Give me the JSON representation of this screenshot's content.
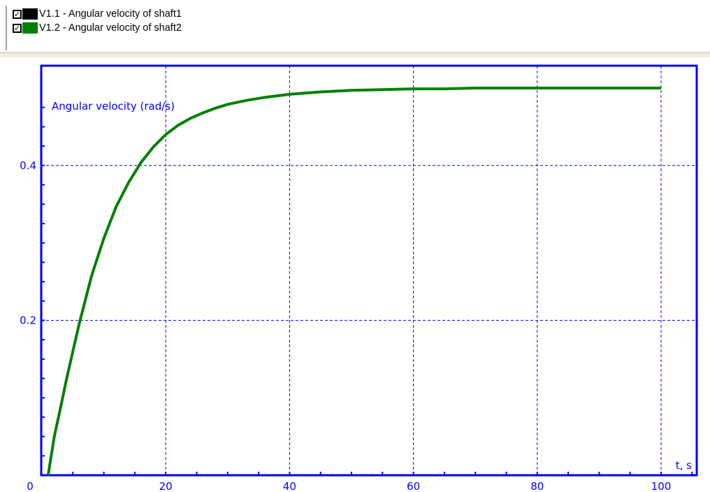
{
  "legend": {
    "items": [
      {
        "label": "V1.1 - Angular velocity of shaft1",
        "color": "#000000",
        "checked": true,
        "check_glyph": "✓",
        "icon": "checkbox-checked-icon"
      },
      {
        "label": "V1.2 - Angular velocity of shaft2",
        "color": "#008000",
        "checked": true,
        "check_glyph": "✓",
        "icon": "checkbox-checked-icon"
      }
    ]
  },
  "chart_data": {
    "type": "line",
    "ylabel": "Angular velocity (rad/s)",
    "xlabel": "t, s",
    "xlim": [
      0,
      106
    ],
    "ylim": [
      0,
      0.5
    ],
    "grid": true,
    "axis_color": "#0000ff",
    "x_ticks": [
      0,
      20,
      40,
      60,
      80,
      100
    ],
    "x_tick_labels": [
      "0",
      "20",
      "40",
      "60",
      "80",
      "100"
    ],
    "y_ticks": [
      0.2,
      0.4
    ],
    "y_tick_labels": [
      "0.2",
      "0.4"
    ],
    "series": [
      {
        "name": "V1.2 - Angular velocity of shaft2",
        "color": "#008000",
        "x": [
          1,
          2,
          3,
          4,
          5,
          6,
          8,
          10,
          12,
          14,
          16,
          18,
          20,
          22,
          24,
          26,
          28,
          30,
          33,
          36,
          40,
          45,
          50,
          55,
          60,
          65,
          70,
          75,
          80,
          85,
          90,
          95,
          100
        ],
        "y": [
          0.0,
          0.05,
          0.087,
          0.125,
          0.16,
          0.195,
          0.257,
          0.306,
          0.347,
          0.378,
          0.404,
          0.424,
          0.44,
          0.452,
          0.461,
          0.468,
          0.474,
          0.479,
          0.484,
          0.488,
          0.492,
          0.495,
          0.497,
          0.498,
          0.499,
          0.499,
          0.5,
          0.5,
          0.5,
          0.5,
          0.5,
          0.5,
          0.5
        ]
      }
    ]
  }
}
